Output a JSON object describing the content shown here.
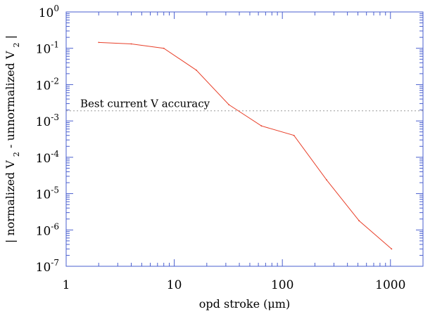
{
  "chart_data": {
    "type": "line",
    "title": "",
    "xlabel": "opd stroke (μm)",
    "ylabel": "| normalized V2 - unnormalized V2 |",
    "ylabel_parts": {
      "open": "|",
      "part1": "normalized V",
      "sub1": "2",
      "part2": " - unnormalized V",
      "sub2": "2",
      "close": "|"
    },
    "x_scale": "log",
    "y_scale": "log",
    "xlim": [
      1,
      2000
    ],
    "ylim": [
      1e-07,
      1
    ],
    "x_ticks": [
      {
        "value": 1,
        "label": "1"
      },
      {
        "value": 10,
        "label": "10"
      },
      {
        "value": 100,
        "label": "100"
      },
      {
        "value": 1000,
        "label": "1000"
      }
    ],
    "y_ticks": [
      {
        "value": 1,
        "base": "10",
        "exp": "0"
      },
      {
        "value": 0.1,
        "base": "10",
        "exp": "-1"
      },
      {
        "value": 0.01,
        "base": "10",
        "exp": "-2"
      },
      {
        "value": 0.001,
        "base": "10",
        "exp": "-3"
      },
      {
        "value": 0.0001,
        "base": "10",
        "exp": "-4"
      },
      {
        "value": 1e-05,
        "base": "10",
        "exp": "-5"
      },
      {
        "value": 1e-06,
        "base": "10",
        "exp": "-6"
      },
      {
        "value": 1e-07,
        "base": "10",
        "exp": "-7"
      }
    ],
    "series": [
      {
        "x": [
          2,
          4,
          8,
          16,
          32,
          64,
          128,
          256,
          512,
          1024
        ],
        "y": [
          0.145,
          0.132,
          0.1,
          0.025,
          0.0028,
          0.00073,
          0.0004,
          2.4e-05,
          1.8e-06,
          3e-07
        ]
      }
    ],
    "reference_line": {
      "y": 0.0019,
      "label": "Best current V accuracy"
    },
    "grid": false,
    "colors": {
      "axes": "#4a5fcf",
      "series": "#e8402a",
      "reference": "#999999"
    }
  }
}
